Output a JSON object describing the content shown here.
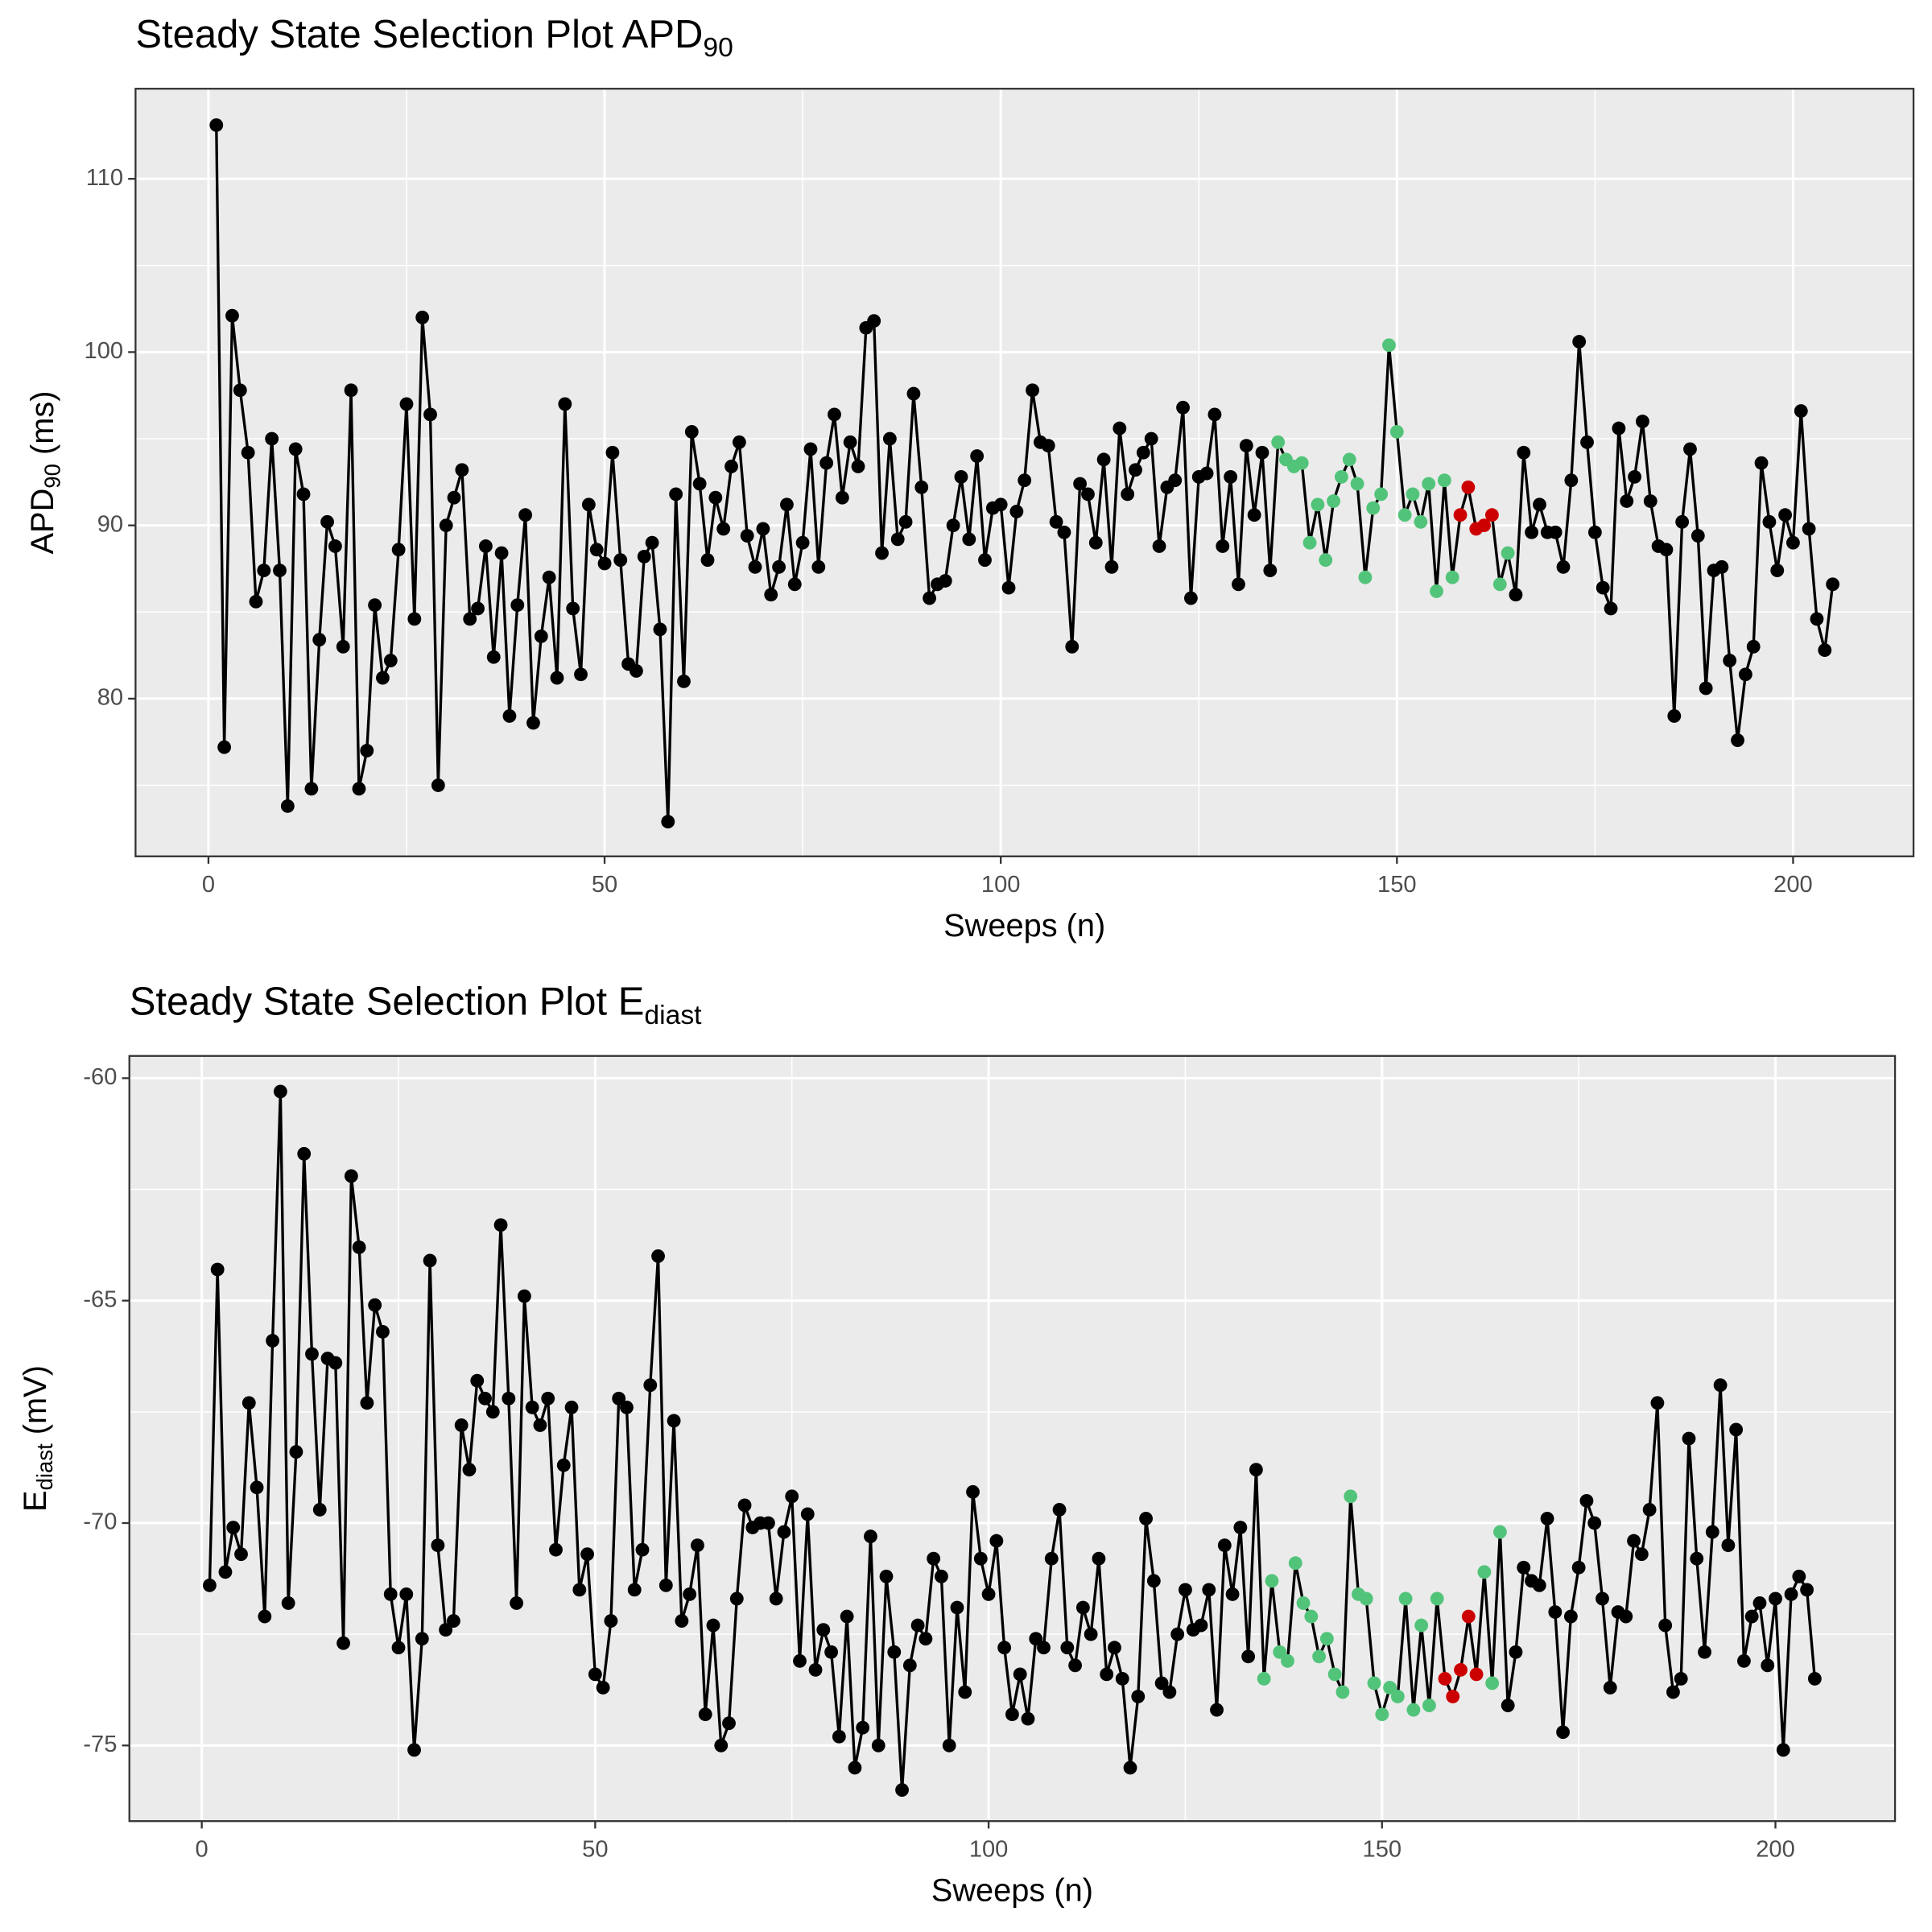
{
  "chart_data": [
    {
      "type": "line",
      "title": "Steady State Selection Plot APD",
      "title_subscript": "90",
      "xlabel": "Sweeps (n)",
      "ylabel": {
        "text": "APD",
        "sub": "90",
        "suffix": " (ms)"
      },
      "xlim": [
        -9.2,
        215.2
      ],
      "xticks": [
        0,
        50,
        100,
        150,
        200
      ],
      "x_minor_grid": [
        25,
        75,
        125,
        175
      ],
      "ylim": [
        70.9,
        115.2
      ],
      "yticks": [
        80,
        90,
        100,
        110
      ],
      "y_minor_grid": [
        75,
        85,
        95,
        105
      ],
      "grid": true,
      "line_color": "#000000",
      "point_color": "#000000",
      "highlights": [
        {
          "color": "#52c47a",
          "from": 135,
          "to": 164
        },
        {
          "color": "#cc0000",
          "from": 158,
          "to": 162
        }
      ],
      "x": [
        1,
        2,
        3,
        4,
        5,
        6,
        7,
        8,
        9,
        10,
        11,
        12,
        13,
        14,
        15,
        16,
        17,
        18,
        19,
        20,
        21,
        22,
        23,
        24,
        25,
        26,
        27,
        28,
        29,
        30,
        31,
        32,
        33,
        34,
        35,
        36,
        37,
        38,
        39,
        40,
        41,
        42,
        43,
        44,
        45,
        46,
        47,
        48,
        49,
        50,
        51,
        52,
        53,
        54,
        55,
        56,
        57,
        58,
        59,
        60,
        61,
        62,
        63,
        64,
        65,
        66,
        67,
        68,
        69,
        70,
        71,
        72,
        73,
        74,
        75,
        76,
        77,
        78,
        79,
        80,
        81,
        82,
        83,
        84,
        85,
        86,
        87,
        88,
        89,
        90,
        91,
        92,
        93,
        94,
        95,
        96,
        97,
        98,
        99,
        100,
        101,
        102,
        103,
        104,
        105,
        106,
        107,
        108,
        109,
        110,
        111,
        112,
        113,
        114,
        115,
        116,
        117,
        118,
        119,
        120,
        121,
        122,
        123,
        124,
        125,
        126,
        127,
        128,
        129,
        130,
        131,
        132,
        133,
        134,
        135,
        136,
        137,
        138,
        139,
        140,
        141,
        142,
        143,
        144,
        145,
        146,
        147,
        148,
        149,
        150,
        151,
        152,
        153,
        154,
        155,
        156,
        157,
        158,
        159,
        160,
        161,
        162,
        163,
        164,
        165,
        166,
        167,
        168,
        169,
        170,
        171,
        172,
        173,
        174,
        175,
        176,
        177,
        178,
        179,
        180,
        181,
        182,
        183,
        184,
        185,
        186,
        187,
        188,
        189,
        190,
        191,
        192,
        193,
        194,
        195,
        196,
        197,
        198,
        199,
        200,
        201,
        202,
        203,
        204,
        205
      ],
      "values": [
        113.1,
        77.2,
        102.1,
        97.8,
        94.2,
        85.6,
        87.4,
        95.0,
        87.4,
        73.8,
        94.4,
        91.8,
        74.8,
        83.4,
        90.2,
        88.8,
        83.0,
        97.8,
        74.8,
        77.0,
        85.4,
        81.2,
        82.2,
        88.6,
        97.0,
        84.6,
        102.0,
        96.4,
        75.0,
        90.0,
        91.6,
        93.2,
        84.6,
        85.2,
        88.8,
        82.4,
        88.4,
        79.0,
        85.4,
        90.6,
        78.6,
        83.6,
        87.0,
        81.2,
        97.0,
        85.2,
        81.4,
        91.2,
        88.6,
        87.8,
        94.2,
        88.0,
        82.0,
        81.6,
        88.2,
        89.0,
        84.0,
        72.9,
        91.8,
        81.0,
        95.4,
        92.4,
        88.0,
        91.6,
        89.8,
        93.4,
        94.8,
        89.4,
        87.6,
        89.8,
        86.0,
        87.6,
        91.2,
        86.6,
        89.0,
        94.4,
        87.6,
        93.6,
        96.4,
        91.6,
        94.8,
        93.4,
        101.4,
        101.8,
        88.4,
        95.0,
        89.2,
        90.2,
        97.6,
        92.2,
        85.8,
        86.6,
        86.8,
        90.0,
        92.8,
        89.2,
        94.0,
        88.0,
        91.0,
        91.2,
        86.4,
        90.8,
        92.6,
        97.8,
        94.8,
        94.6,
        90.2,
        89.6,
        83.0,
        92.4,
        91.8,
        89.0,
        93.8,
        87.6,
        95.6,
        91.8,
        93.2,
        94.2,
        95.0,
        88.8,
        92.2,
        92.6,
        96.8,
        85.8,
        92.8,
        93.0,
        96.4,
        88.8,
        92.8,
        86.6,
        94.6,
        90.6,
        94.2,
        87.4,
        94.8,
        93.8,
        93.4,
        93.6,
        89.0,
        91.2,
        88.0,
        91.4,
        92.8,
        93.8,
        92.4,
        87.0,
        91.0,
        91.8,
        100.4,
        95.4,
        90.6,
        91.8,
        90.2,
        92.4,
        86.2,
        92.6,
        87.0,
        90.6,
        92.2,
        89.8,
        90.0,
        90.6,
        86.6,
        88.4,
        86.0,
        94.2,
        89.6,
        91.2,
        89.6,
        89.6,
        87.6,
        92.6,
        100.6,
        94.8,
        89.6,
        86.4,
        85.2,
        95.6,
        91.4,
        92.8,
        96.0,
        91.4,
        88.8,
        88.6,
        79.0,
        90.2,
        94.4,
        89.4,
        80.6,
        87.4,
        87.6,
        82.2,
        77.6,
        81.4,
        83.0,
        93.6,
        90.2,
        87.4,
        90.6,
        89.0,
        96.6,
        89.8,
        84.6,
        82.8,
        86.6
      ]
    },
    {
      "type": "line",
      "title": "Steady State Selection Plot E",
      "title_subscript": "diast",
      "xlabel": "Sweeps (n)",
      "ylabel": {
        "text": "E",
        "sub": "diast",
        "suffix": " (mV)"
      },
      "xlim": [
        -9.2,
        215.2
      ],
      "xticks": [
        0,
        50,
        100,
        150,
        200
      ],
      "x_minor_grid": [
        25,
        75,
        125,
        175
      ],
      "ylim": [
        -76.7,
        -59.5
      ],
      "yticks": [
        -75,
        -70,
        -65,
        -60
      ],
      "y_minor_grid": [
        -72.5,
        -67.5,
        -62.5
      ],
      "grid": true,
      "line_color": "#000000",
      "point_color": "#000000",
      "highlights": [
        {
          "color": "#52c47a",
          "from": 135,
          "to": 165
        },
        {
          "color": "#cc0000",
          "from": 158,
          "to": 162
        }
      ],
      "x": [
        1,
        2,
        3,
        4,
        5,
        6,
        7,
        8,
        9,
        10,
        11,
        12,
        13,
        14,
        15,
        16,
        17,
        18,
        19,
        20,
        21,
        22,
        23,
        24,
        25,
        26,
        27,
        28,
        29,
        30,
        31,
        32,
        33,
        34,
        35,
        36,
        37,
        38,
        39,
        40,
        41,
        42,
        43,
        44,
        45,
        46,
        47,
        48,
        49,
        50,
        51,
        52,
        53,
        54,
        55,
        56,
        57,
        58,
        59,
        60,
        61,
        62,
        63,
        64,
        65,
        66,
        67,
        68,
        69,
        70,
        71,
        72,
        73,
        74,
        75,
        76,
        77,
        78,
        79,
        80,
        81,
        82,
        83,
        84,
        85,
        86,
        87,
        88,
        89,
        90,
        91,
        92,
        93,
        94,
        95,
        96,
        97,
        98,
        99,
        100,
        101,
        102,
        103,
        104,
        105,
        106,
        107,
        108,
        109,
        110,
        111,
        112,
        113,
        114,
        115,
        116,
        117,
        118,
        119,
        120,
        121,
        122,
        123,
        124,
        125,
        126,
        127,
        128,
        129,
        130,
        131,
        132,
        133,
        134,
        135,
        136,
        137,
        138,
        139,
        140,
        141,
        142,
        143,
        144,
        145,
        146,
        147,
        148,
        149,
        150,
        151,
        152,
        153,
        154,
        155,
        156,
        157,
        158,
        159,
        160,
        161,
        162,
        163,
        164,
        165,
        166,
        167,
        168,
        169,
        170,
        171,
        172,
        173,
        174,
        175,
        176,
        177,
        178,
        179,
        180,
        181,
        182,
        183,
        184,
        185,
        186,
        187,
        188,
        189,
        190,
        191,
        192,
        193,
        194,
        195,
        196,
        197,
        198,
        199,
        200,
        201,
        202,
        203,
        204,
        205
      ],
      "values": [
        -71.4,
        -64.3,
        -71.1,
        -70.1,
        -70.7,
        -67.3,
        -69.2,
        -72.1,
        -65.9,
        -60.3,
        -71.8,
        -68.4,
        -61.7,
        -66.2,
        -69.7,
        -66.3,
        -66.4,
        -72.7,
        -62.2,
        -63.8,
        -67.3,
        -65.1,
        -65.7,
        -71.6,
        -72.8,
        -71.6,
        -75.1,
        -72.6,
        -64.1,
        -70.5,
        -72.4,
        -72.2,
        -67.8,
        -68.8,
        -66.8,
        -67.2,
        -67.5,
        -63.3,
        -67.2,
        -71.8,
        -64.9,
        -67.4,
        -67.8,
        -67.2,
        -70.6,
        -68.7,
        -67.4,
        -71.5,
        -70.7,
        -73.4,
        -73.7,
        -72.2,
        -67.2,
        -67.4,
        -71.5,
        -70.6,
        -66.9,
        -64.0,
        -71.4,
        -67.7,
        -72.2,
        -71.6,
        -70.5,
        -74.3,
        -72.3,
        -75.0,
        -74.5,
        -71.7,
        -69.6,
        -70.1,
        -70.0,
        -70.0,
        -71.7,
        -70.2,
        -69.4,
        -73.1,
        -69.8,
        -73.3,
        -72.4,
        -72.9,
        -74.8,
        -72.1,
        -75.5,
        -74.6,
        -70.3,
        -75.0,
        -71.2,
        -72.9,
        -76.0,
        -73.2,
        -72.3,
        -72.6,
        -70.8,
        -71.2,
        -75.0,
        -71.9,
        -73.8,
        -69.3,
        -70.8,
        -71.6,
        -70.4,
        -72.8,
        -74.3,
        -73.4,
        -74.4,
        -72.6,
        -72.8,
        -70.8,
        -69.7,
        -72.8,
        -73.2,
        -71.9,
        -72.5,
        -70.8,
        -73.4,
        -72.8,
        -73.5,
        -75.5,
        -73.9,
        -69.9,
        -71.3,
        -73.6,
        -73.8,
        -72.5,
        -71.5,
        -72.4,
        -72.3,
        -71.5,
        -74.2,
        -70.5,
        -71.6,
        -70.1,
        -73.0,
        -68.8,
        -73.5,
        -71.3,
        -72.9,
        -73.1,
        -70.9,
        -71.8,
        -72.1,
        -73.0,
        -72.6,
        -73.4,
        -73.8,
        -69.4,
        -71.6,
        -71.7,
        -73.6,
        -74.3,
        -73.7,
        -73.9,
        -71.7,
        -74.2,
        -72.3,
        -74.1,
        -71.7,
        -73.5,
        -73.9,
        -73.3,
        -72.1,
        -73.4,
        -71.1,
        -73.6,
        -70.2,
        -74.1,
        -72.9,
        -71.0,
        -71.3,
        -71.4,
        -69.9,
        -72.0,
        -74.7,
        -72.1,
        -71.0,
        -69.5,
        -70.0,
        -71.7,
        -73.7,
        -72.0,
        -72.1,
        -70.4,
        -70.7,
        -69.7,
        -67.3,
        -72.3,
        -73.8,
        -73.5,
        -68.1,
        -70.8,
        -72.9,
        -70.2,
        -66.9,
        -70.5,
        -67.9,
        -73.1,
        -72.1,
        -71.8,
        -73.2,
        -71.7,
        -75.1,
        -71.6,
        -71.2,
        -71.5,
        -73.5
      ]
    }
  ]
}
